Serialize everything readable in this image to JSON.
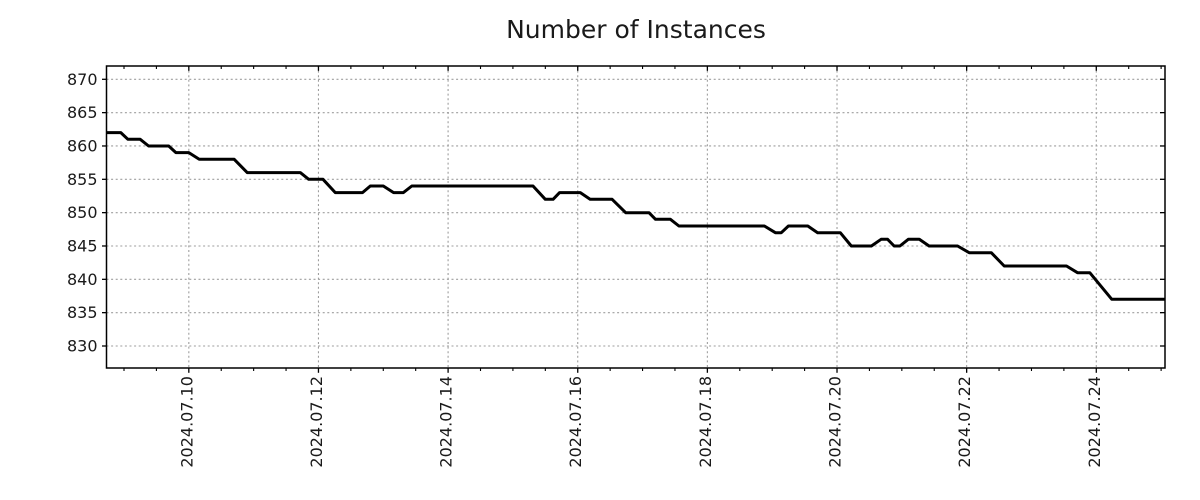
{
  "title": "Number of Instances",
  "chart_data": {
    "type": "line",
    "title": "Number of Instances",
    "xlabel": "",
    "ylabel": "",
    "legend": "none",
    "grid": "dotted",
    "line_color": "#000000",
    "grid_color": "#9e9e9e",
    "axis_color": "#000000",
    "text_color": "#1a1a1a",
    "x_axis": {
      "unit": "day of July 2024",
      "min_day": 8.73,
      "max_day": 25.06,
      "minor_tick_step_days": 0.5,
      "major_ticks": [
        {
          "day": 10,
          "label": "2024.07.10"
        },
        {
          "day": 12,
          "label": "2024.07.12"
        },
        {
          "day": 14,
          "label": "2024.07.14"
        },
        {
          "day": 16,
          "label": "2024.07.16"
        },
        {
          "day": 18,
          "label": "2024.07.18"
        },
        {
          "day": 20,
          "label": "2024.07.20"
        },
        {
          "day": 22,
          "label": "2024.07.22"
        },
        {
          "day": 24,
          "label": "2024.07.24"
        }
      ]
    },
    "y_axis": {
      "min": 826.7,
      "max": 872.0,
      "major_ticks": [
        {
          "value": 870,
          "label": "870"
        },
        {
          "value": 865,
          "label": "865"
        },
        {
          "value": 860,
          "label": "860"
        },
        {
          "value": 855,
          "label": "855"
        },
        {
          "value": 850,
          "label": "850"
        },
        {
          "value": 845,
          "label": "845"
        },
        {
          "value": 840,
          "label": "840"
        },
        {
          "value": 835,
          "label": "835"
        },
        {
          "value": 830,
          "label": "830"
        }
      ]
    },
    "series": [
      {
        "name": "instances",
        "points_day_value": [
          [
            8.73,
            862
          ],
          [
            8.95,
            862
          ],
          [
            9.06,
            861
          ],
          [
            9.25,
            861
          ],
          [
            9.38,
            860
          ],
          [
            9.69,
            860
          ],
          [
            9.8,
            859
          ],
          [
            10.0,
            859
          ],
          [
            10.16,
            858
          ],
          [
            10.7,
            858
          ],
          [
            10.9,
            856
          ],
          [
            11.72,
            856
          ],
          [
            11.85,
            855
          ],
          [
            12.07,
            855
          ],
          [
            12.26,
            853
          ],
          [
            12.68,
            853
          ],
          [
            12.8,
            854
          ],
          [
            13.0,
            854
          ],
          [
            13.16,
            853
          ],
          [
            13.31,
            853
          ],
          [
            13.44,
            854
          ],
          [
            15.31,
            854
          ],
          [
            15.5,
            852
          ],
          [
            15.62,
            852
          ],
          [
            15.72,
            853
          ],
          [
            16.04,
            853
          ],
          [
            16.19,
            852
          ],
          [
            16.53,
            852
          ],
          [
            16.74,
            850
          ],
          [
            17.1,
            850
          ],
          [
            17.2,
            849
          ],
          [
            17.43,
            849
          ],
          [
            17.56,
            848
          ],
          [
            18.88,
            848
          ],
          [
            19.05,
            847
          ],
          [
            19.14,
            847
          ],
          [
            19.25,
            848
          ],
          [
            19.55,
            848
          ],
          [
            19.7,
            847
          ],
          [
            20.05,
            847
          ],
          [
            20.22,
            845
          ],
          [
            20.53,
            845
          ],
          [
            20.68,
            846
          ],
          [
            20.78,
            846
          ],
          [
            20.88,
            845
          ],
          [
            20.97,
            845
          ],
          [
            21.1,
            846
          ],
          [
            21.27,
            846
          ],
          [
            21.42,
            845
          ],
          [
            21.86,
            845
          ],
          [
            22.04,
            844
          ],
          [
            22.38,
            844
          ],
          [
            22.58,
            842
          ],
          [
            23.54,
            842
          ],
          [
            23.71,
            841
          ],
          [
            23.9,
            841
          ],
          [
            24.24,
            837
          ],
          [
            25.06,
            837
          ]
        ]
      }
    ]
  }
}
